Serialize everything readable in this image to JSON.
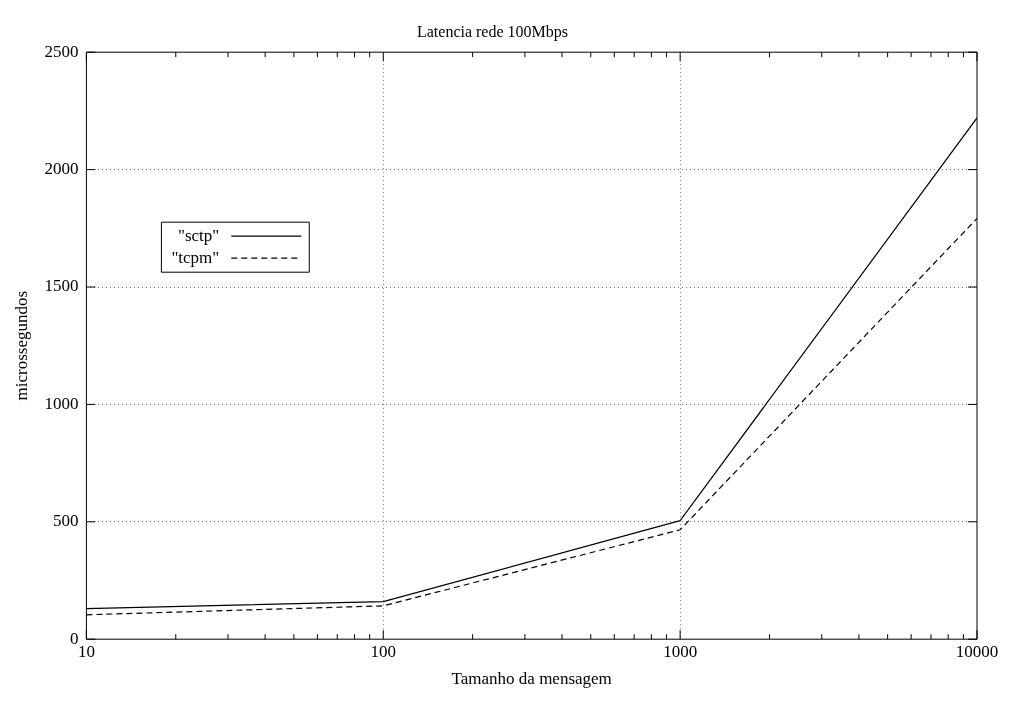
{
  "chart_data": {
    "type": "line",
    "title": "Latencia rede 100Mbps",
    "xlabel": "Tamanho da mensagem",
    "ylabel": "microssegundos",
    "log": "x",
    "x": [
      10,
      100,
      1000,
      10000
    ],
    "series": [
      {
        "name": "\"sctp\"",
        "color": "#000000",
        "line_style": "solid",
        "values": [
          130,
          160,
          505,
          2220
        ]
      },
      {
        "name": "\"tcpm\"",
        "color": "#000000",
        "line_style": "dashed",
        "values": [
          104,
          142,
          466,
          1792
        ]
      }
    ],
    "xlim": [
      10,
      10000
    ],
    "xticks": [
      10,
      {
        "value": 20,
        "label": null
      },
      {
        "value": 30,
        "label": null
      },
      {
        "value": 40,
        "label": null
      },
      {
        "value": 50,
        "label": null
      },
      {
        "value": 60,
        "label": null
      },
      {
        "value": 70,
        "label": null
      },
      {
        "value": 80,
        "label": null
      },
      {
        "value": 90,
        "label": null
      },
      100,
      {
        "value": 200,
        "label": null
      },
      {
        "value": 300,
        "label": null
      },
      {
        "value": 400,
        "label": null
      },
      {
        "value": 500,
        "label": null
      },
      {
        "value": 600,
        "label": null
      },
      {
        "value": 700,
        "label": null
      },
      {
        "value": 800,
        "label": null
      },
      {
        "value": 900,
        "label": null
      },
      1000,
      {
        "value": 2000,
        "label": null
      },
      {
        "value": 3000,
        "label": null
      },
      {
        "value": 4000,
        "label": null
      },
      {
        "value": 5000,
        "label": null
      },
      {
        "value": 6000,
        "label": null
      },
      {
        "value": 7000,
        "label": null
      },
      {
        "value": 8000,
        "label": null
      },
      {
        "value": 9000,
        "label": null
      },
      10000
    ],
    "ylim": [
      0,
      2500
    ],
    "yticks": [
      0,
      500,
      1000,
      1500,
      2000,
      2500
    ],
    "grid": true,
    "legend": "top left",
    "marker": "none"
  }
}
